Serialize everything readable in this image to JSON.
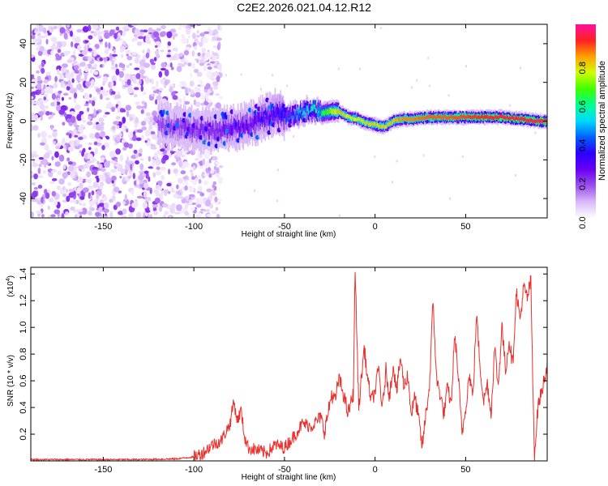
{
  "title": "C2E2.2026.021.04.12.R12",
  "chart_data": [
    {
      "type": "heatmap",
      "xlabel": "Height of straight line (km)",
      "ylabel": "Frequency (Hz)",
      "xlim": [
        -190,
        95
      ],
      "ylim": [
        -50,
        50
      ],
      "xticks": [
        -150,
        -100,
        -50,
        0,
        50
      ],
      "yticks": [
        -40,
        -20,
        0,
        20,
        40
      ],
      "colorbar": {
        "label": "Normalized spectral amplitude",
        "range": [
          0,
          1
        ],
        "ticks": [
          0.0,
          0.2,
          0.4,
          0.6,
          0.8
        ],
        "tick_labels": [
          "0.0",
          "0.2",
          "0.4",
          "0.6",
          "0.8"
        ],
        "colormap": [
          "#ffffff",
          "#d8b8f8",
          "#9a50ee",
          "#6a00f0",
          "#2a00ff",
          "#0060ff",
          "#00d8ff",
          "#00ff90",
          "#40ff00",
          "#d0ff00",
          "#ffa000",
          "#ff2020",
          "#ff10a0"
        ]
      },
      "ridge": {
        "x": [
          -120,
          -110,
          -100,
          -90,
          -80,
          -70,
          -60,
          -55,
          -50,
          -45,
          -40,
          -35,
          -30,
          -25,
          -20,
          -15,
          -10,
          -5,
          0,
          5,
          10,
          15,
          20,
          30,
          40,
          50,
          60,
          70,
          80,
          90,
          95
        ],
        "y": [
          -2,
          -3,
          -4,
          -5,
          -4,
          -2,
          2,
          5,
          2,
          3,
          5,
          6,
          4,
          5,
          5,
          2,
          1,
          -1,
          -2,
          -3,
          0,
          1,
          1,
          2,
          2,
          2,
          2,
          2,
          1,
          0,
          0
        ],
        "amplitude": [
          0.18,
          0.2,
          0.22,
          0.22,
          0.25,
          0.25,
          0.28,
          0.3,
          0.35,
          0.45,
          0.5,
          0.55,
          0.6,
          0.7,
          0.8,
          0.75,
          0.75,
          0.78,
          0.78,
          0.78,
          0.8,
          0.85,
          0.85,
          0.88,
          0.88,
          0.9,
          0.92,
          0.93,
          0.93,
          0.95,
          0.95
        ]
      },
      "noise_region": {
        "x_range": [
          -190,
          -100
        ],
        "amplitude_range": [
          0.03,
          0.22
        ]
      }
    },
    {
      "type": "line",
      "xlabel": "Height of straight line (km)",
      "ylabel": "SNR (10 * v/v)",
      "y_multiplier": "(x10",
      "y_multiplier_exp": "4",
      "y_multiplier_close": ")",
      "xlim": [
        -190,
        95
      ],
      "ylim": [
        0,
        1.45
      ],
      "xticks": [
        -150,
        -100,
        -50,
        0,
        50
      ],
      "yticks": [
        0.2,
        0.4,
        0.6,
        0.8,
        1.0,
        1.2,
        1.4
      ],
      "ytick_labels": [
        "0.2",
        "0.4",
        "0.6",
        "0.8",
        "1.0",
        "1.2",
        "1.4"
      ],
      "color": "#e8302c",
      "series": [
        {
          "x": [
            -190,
            -170,
            -150,
            -130,
            -110,
            -100,
            -95,
            -90,
            -85,
            -80,
            -78,
            -76,
            -74,
            -72,
            -70,
            -65,
            -60,
            -55,
            -50,
            -45,
            -40,
            -35,
            -30,
            -28,
            -26,
            -24,
            -22,
            -20,
            -17,
            -15,
            -12,
            -11,
            -10,
            -9,
            -8,
            -6,
            -4,
            -2,
            0,
            2,
            4,
            6,
            8,
            10,
            12,
            14,
            16,
            18,
            20,
            22,
            24,
            26,
            28,
            30,
            32,
            34,
            36,
            38,
            40,
            42,
            44,
            46,
            48,
            50,
            52,
            54,
            56,
            58,
            60,
            62,
            64,
            66,
            68,
            70,
            72,
            74,
            76,
            78,
            80,
            82,
            84,
            86,
            87,
            88,
            90,
            92,
            95
          ],
          "y": [
            0.01,
            0.01,
            0.01,
            0.01,
            0.015,
            0.03,
            0.06,
            0.12,
            0.15,
            0.28,
            0.45,
            0.3,
            0.38,
            0.18,
            0.1,
            0.08,
            0.06,
            0.12,
            0.1,
            0.18,
            0.28,
            0.26,
            0.33,
            0.22,
            0.35,
            0.5,
            0.45,
            0.62,
            0.48,
            0.35,
            0.5,
            1.45,
            0.9,
            0.4,
            0.55,
            0.85,
            0.6,
            0.45,
            0.52,
            0.7,
            0.38,
            0.68,
            0.48,
            0.72,
            0.52,
            0.78,
            0.55,
            0.65,
            0.35,
            0.48,
            0.32,
            0.1,
            0.35,
            0.55,
            1.2,
            0.6,
            0.5,
            0.35,
            0.55,
            0.42,
            0.95,
            0.62,
            0.2,
            0.4,
            0.65,
            0.48,
            1.1,
            0.7,
            0.45,
            0.58,
            0.35,
            0.85,
            0.55,
            1.02,
            0.68,
            0.9,
            0.72,
            1.28,
            1.05,
            1.3,
            1.22,
            1.35,
            0.6,
            0.05,
            0.42,
            0.52,
            0.72
          ]
        }
      ]
    }
  ]
}
